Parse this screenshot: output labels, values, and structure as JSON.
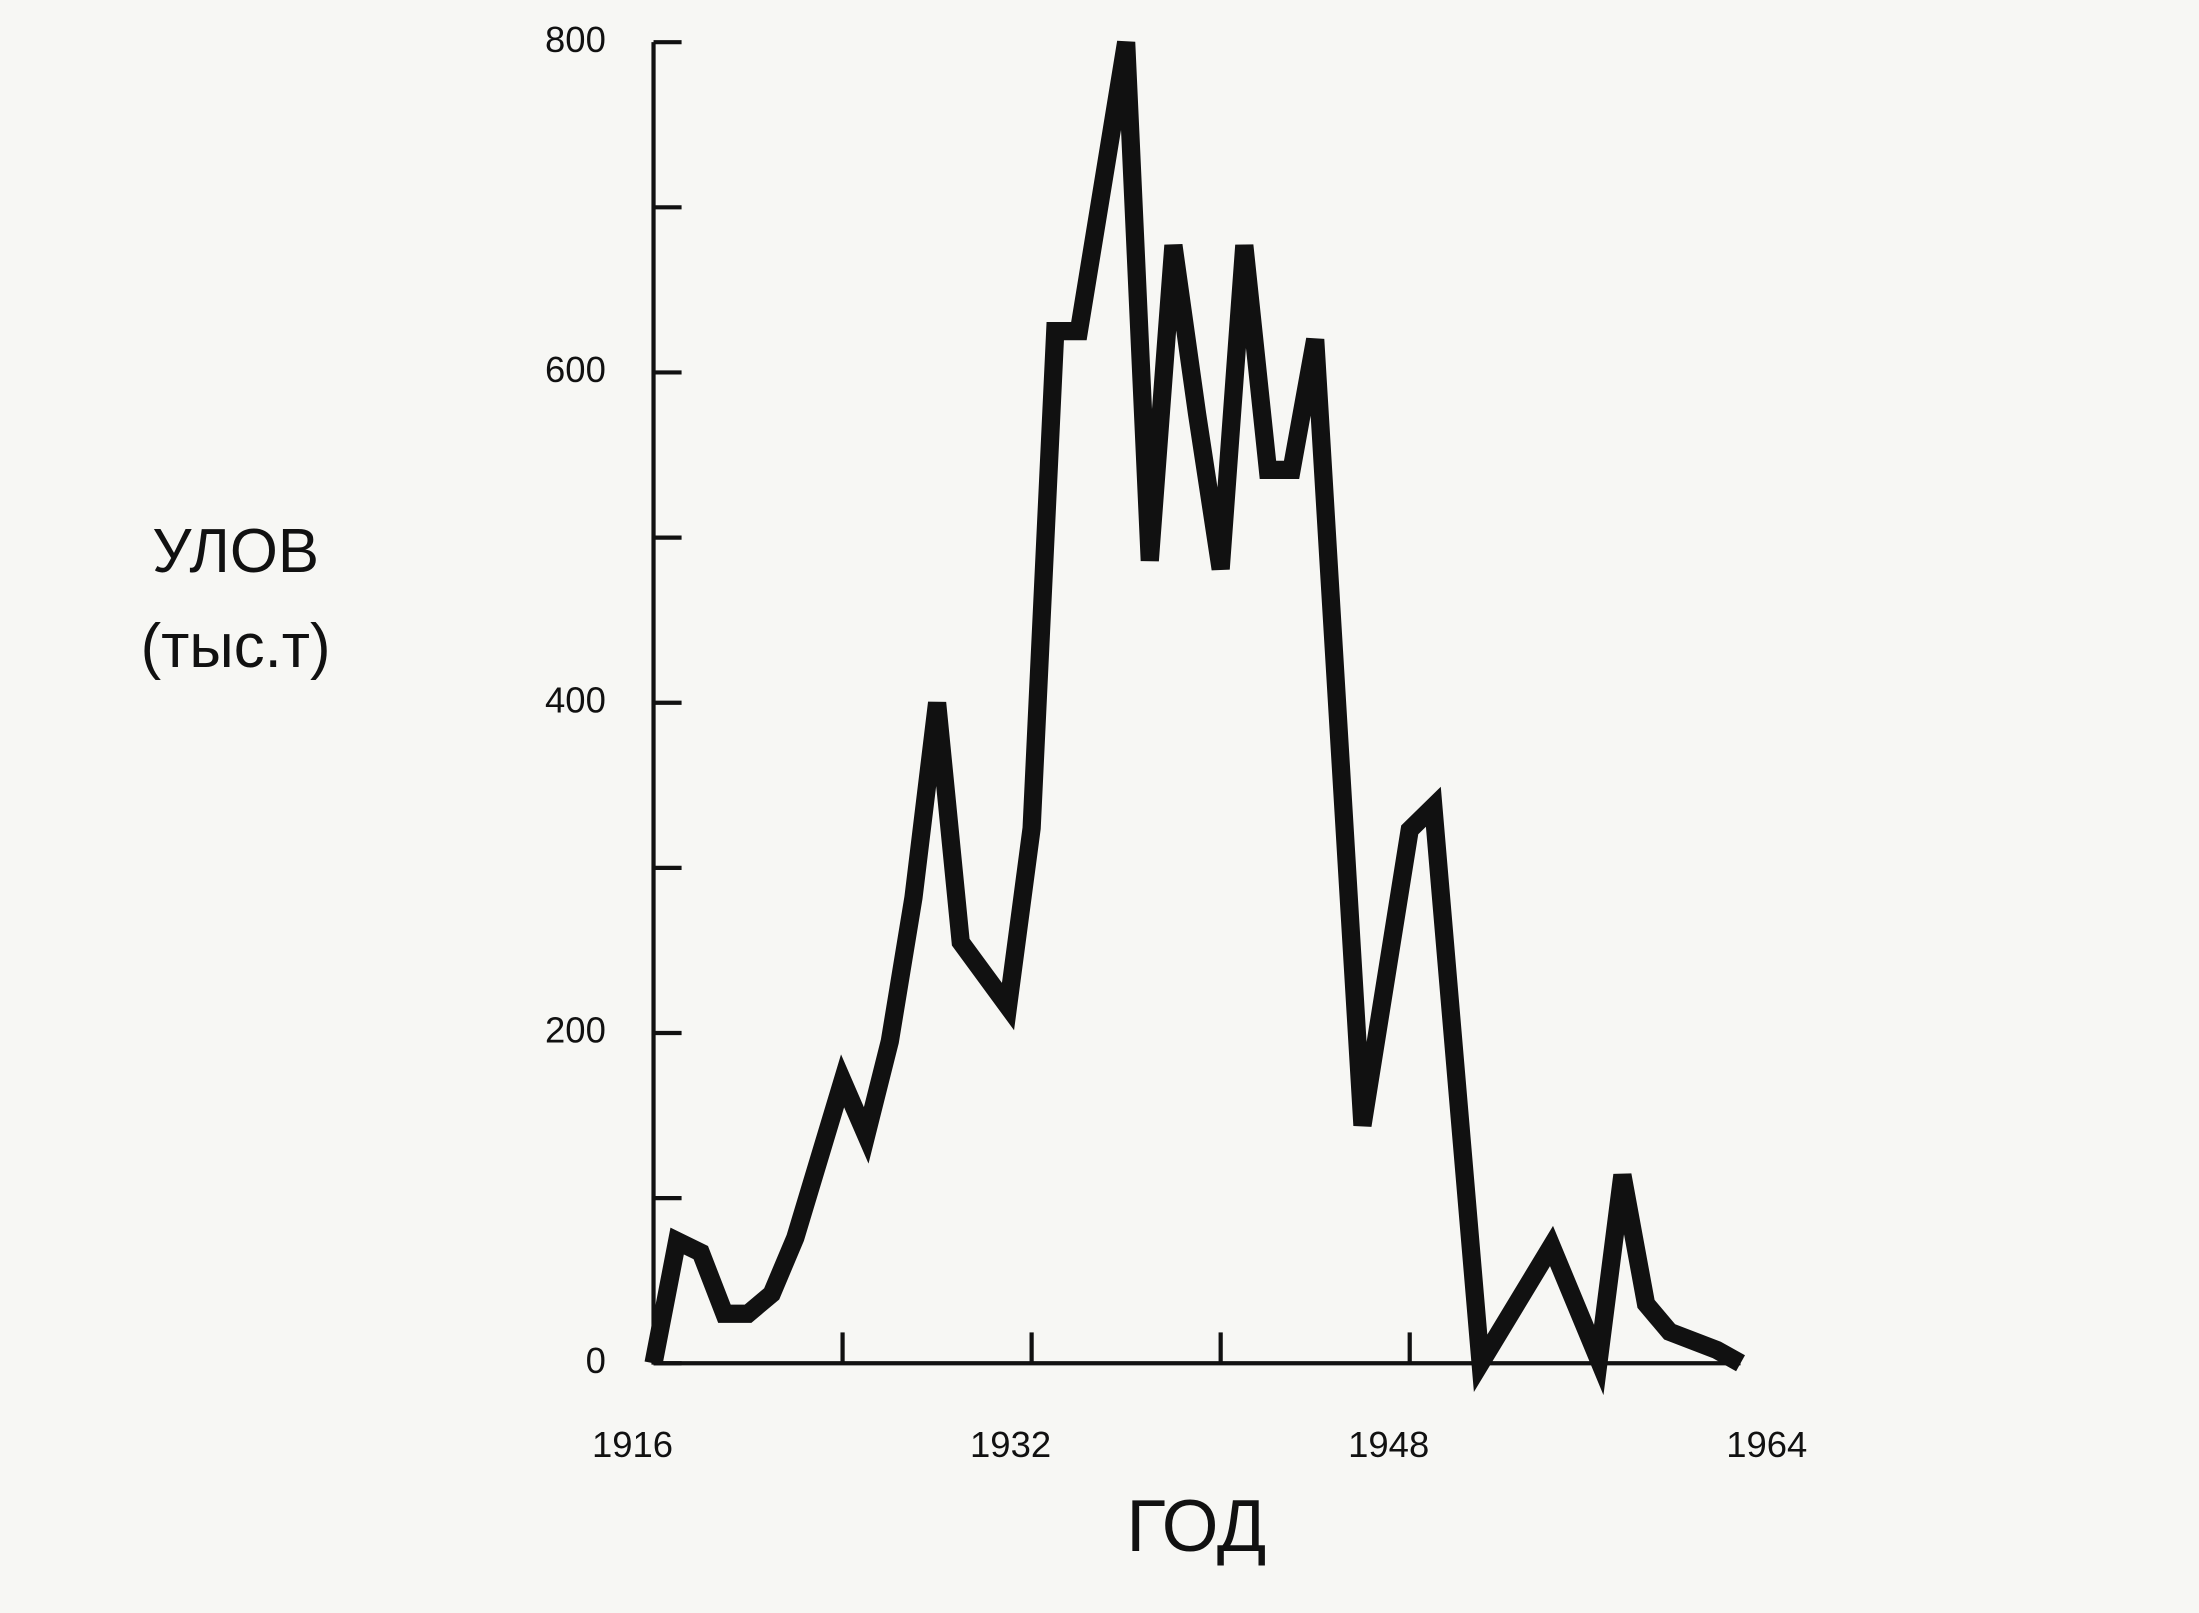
{
  "chart_data": {
    "type": "line",
    "ylabel": [
      "УЛОВ",
      "(тыс.т)"
    ],
    "xlabel": "ГОД",
    "x": [
      1916,
      1917,
      1918,
      1919,
      1920,
      1921,
      1922,
      1924,
      1925,
      1926,
      1927,
      1928,
      1929,
      1931,
      1932,
      1933,
      1934,
      1936,
      1937,
      1938,
      1939,
      1940,
      1941,
      1942,
      1943,
      1944,
      1946,
      1948,
      1949,
      1951,
      1954,
      1956,
      1957,
      1958,
      1959,
      1961,
      1962
    ],
    "series": [
      {
        "name": "Улов",
        "color": "#111111",
        "values": [
          0,
          74,
          67,
          30,
          30,
          42,
          76,
          171,
          138,
          195,
          282,
          400,
          255,
          216,
          324,
          625,
          625,
          800,
          486,
          677,
          575,
          481,
          677,
          541,
          541,
          620,
          144,
          323,
          337,
          0,
          71,
          2,
          114,
          36,
          19,
          8,
          0
        ]
      }
    ],
    "xlim": [
      1916,
      1962
    ],
    "xticks": [
      1916,
      1932,
      1948,
      1964
    ],
    "xtick_marks": [
      1924,
      1932,
      1940,
      1948,
      1956
    ],
    "ylim": [
      0,
      800
    ],
    "yticks": [
      0,
      200,
      400,
      600,
      800
    ],
    "ytick_marks": [
      0,
      100,
      200,
      300,
      400,
      500,
      600,
      700,
      800
    ],
    "grid": false
  }
}
